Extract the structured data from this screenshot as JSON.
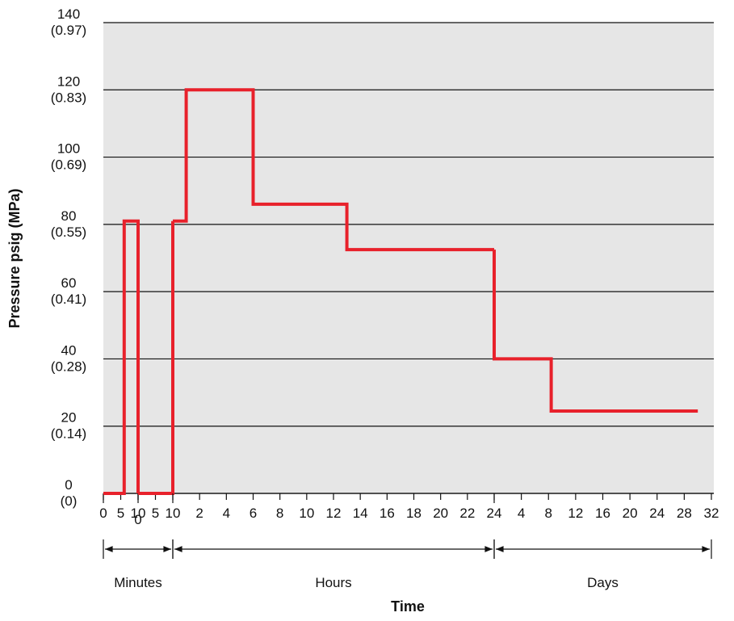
{
  "chart_data": {
    "type": "line",
    "y_label": "Pressure psig (MPa)",
    "x_label": "Time",
    "color": "#e8212b",
    "grid": true,
    "ylim": [
      0,
      140
    ],
    "yticks": [
      {
        "value": 0,
        "label": "0",
        "secondary": "(0)"
      },
      {
        "value": 20,
        "label": "20",
        "secondary": "(0.14)"
      },
      {
        "value": 40,
        "label": "40",
        "secondary": "(0.28)"
      },
      {
        "value": 60,
        "label": "60",
        "secondary": "(0.41)"
      },
      {
        "value": 80,
        "label": "80",
        "secondary": "(0.55)"
      },
      {
        "value": 100,
        "label": "100",
        "secondary": "(0.69)"
      },
      {
        "value": 120,
        "label": "120",
        "secondary": "(0.83)"
      },
      {
        "value": 140,
        "label": "140",
        "secondary": "(0.97)"
      }
    ],
    "x_sections": [
      {
        "name": "Minutes",
        "axes": [
          {
            "xlim": [
              0,
              10
            ],
            "xticks": [
              0,
              5,
              10
            ],
            "x": [
              0,
              6,
              6,
              10,
              10
            ],
            "y": [
              0,
              0,
              81,
              81,
              0
            ]
          },
          {
            "xlim": [
              0,
              10
            ],
            "xticks": [
              0,
              5,
              10
            ],
            "x": [
              10,
              10
            ],
            "y": [
              0,
              81
            ]
          }
        ]
      },
      {
        "name": "Hours",
        "axes": [
          {
            "xlim": [
              0,
              24
            ],
            "xticks": [
              2,
              4,
              6,
              8,
              10,
              12,
              14,
              16,
              18,
              20,
              22,
              24
            ],
            "x": [
              1,
              1,
              6,
              6,
              13,
              13,
              24
            ],
            "y": [
              81,
              120,
              120,
              86,
              86,
              72.5,
              72.5
            ]
          }
        ]
      },
      {
        "name": "Days",
        "axes": [
          {
            "xlim": [
              0,
              32
            ],
            "xticks": [
              4,
              8,
              12,
              16,
              20,
              24,
              28,
              32
            ],
            "x": [
              0,
              8.4,
              8.4,
              30
            ],
            "y": [
              40,
              40,
              24.5,
              24.5
            ]
          }
        ]
      }
    ]
  }
}
